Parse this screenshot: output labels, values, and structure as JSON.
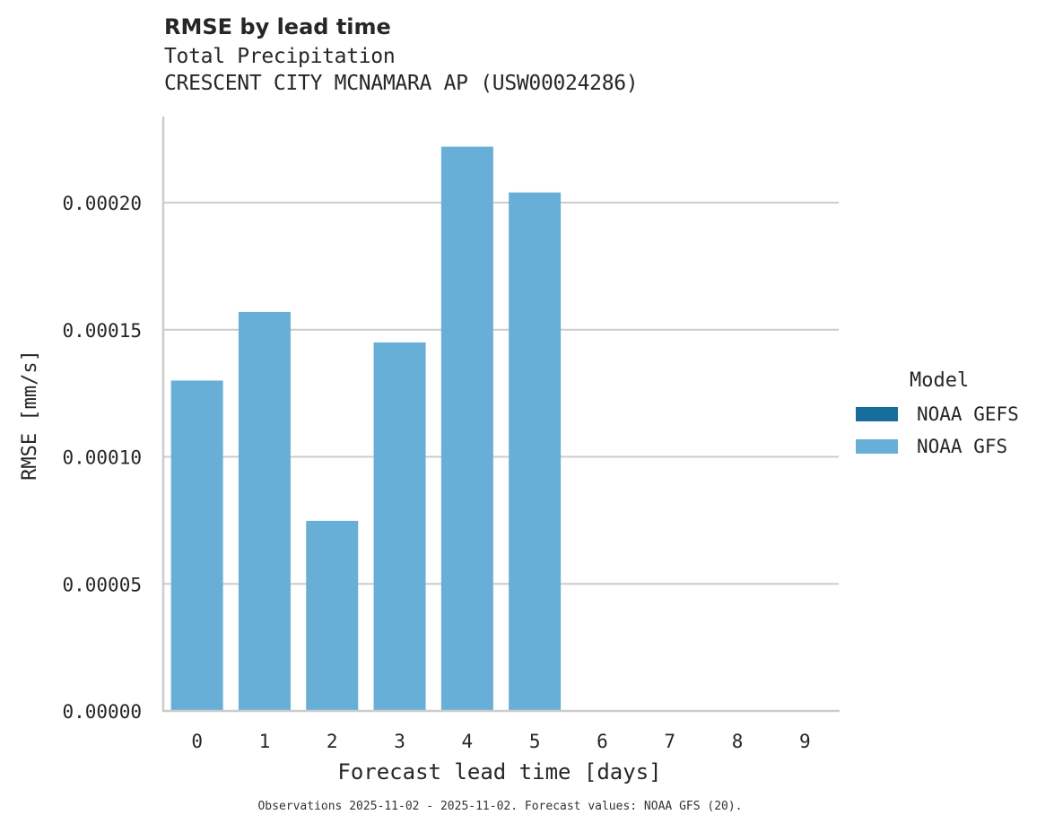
{
  "header": {
    "title": "RMSE by lead time",
    "subtitle_line1": "Total Precipitation",
    "subtitle_line2": "CRESCENT CITY MCNAMARA AP (USW00024286)"
  },
  "axes": {
    "xlabel": "Forecast lead time [days]",
    "ylabel": "RMSE [mm/s]",
    "yticks": [
      "0.00000",
      "0.00005",
      "0.00010",
      "0.00015",
      "0.00020"
    ],
    "xticks": [
      "0",
      "1",
      "2",
      "3",
      "4",
      "5",
      "6",
      "7",
      "8",
      "9"
    ]
  },
  "legend": {
    "title": "Model",
    "items": [
      {
        "label": "NOAA GEFS",
        "color": "#176d9c"
      },
      {
        "label": "NOAA GFS",
        "color": "#67afd7"
      }
    ]
  },
  "footnote": "Observations 2025-11-02 - 2025-11-02. Forecast values: NOAA GFS (20).",
  "colors": {
    "grid": "#cccccc",
    "spine": "#cccccc",
    "text": "#262626"
  },
  "chart_data": {
    "type": "bar",
    "title": "RMSE by lead time",
    "subtitle": [
      "Total Precipitation",
      "CRESCENT CITY MCNAMARA AP (USW00024286)"
    ],
    "xlabel": "Forecast lead time [days]",
    "ylabel": "RMSE [mm/s]",
    "categories": [
      "0",
      "1",
      "2",
      "3",
      "4",
      "5",
      "6",
      "7",
      "8",
      "9"
    ],
    "series": [
      {
        "name": "NOAA GEFS",
        "color": "#176d9c",
        "values": [
          null,
          null,
          null,
          null,
          null,
          null,
          null,
          null,
          null,
          null
        ]
      },
      {
        "name": "NOAA GFS",
        "color": "#67afd7",
        "values": [
          0.00013,
          0.000157,
          7.48e-05,
          0.000145,
          0.000222,
          0.000204,
          null,
          null,
          null,
          null
        ]
      }
    ],
    "ylim": [
      0,
      0.000234
    ],
    "yticks": [
      0.0,
      5e-05,
      0.0001,
      0.00015,
      0.0002
    ],
    "grid": "horizontal",
    "legend_position": "right",
    "legend_title": "Model",
    "footnote": "Observations 2025-11-02 - 2025-11-02. Forecast values: NOAA GFS (20)."
  }
}
